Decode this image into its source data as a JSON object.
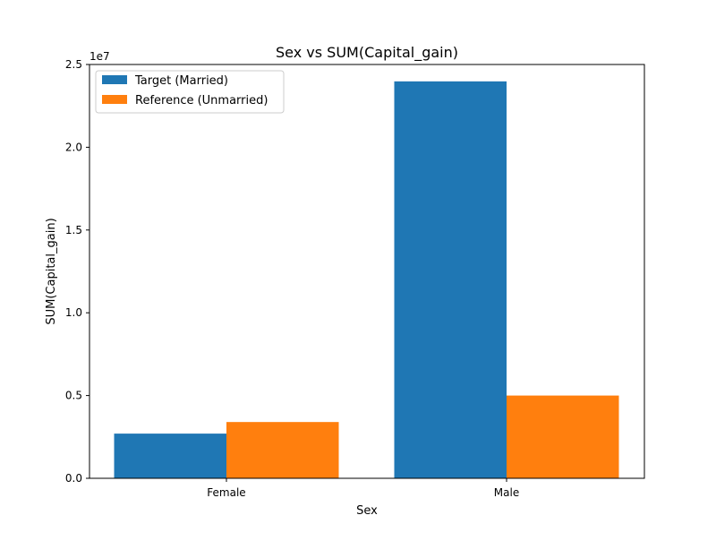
{
  "chart_data": {
    "type": "bar",
    "title": "Sex vs SUM(Capital_gain)",
    "xlabel": "Sex",
    "ylabel": "SUM(Capital_gain)",
    "y_offset_label": "1e7",
    "categories": [
      "Female",
      "Male"
    ],
    "series": [
      {
        "name": "Target (Married)",
        "values": [
          2700000,
          23980000
        ],
        "color": "#1f77b4"
      },
      {
        "name": "Reference (Unmarried)",
        "values": [
          3400000,
          5000000
        ],
        "color": "#ff7f0e"
      }
    ],
    "ylim": [
      0,
      25000000
    ],
    "yticks": [
      0,
      5000000,
      10000000,
      15000000,
      20000000,
      25000000
    ],
    "ytick_labels": [
      "0.0",
      "0.5",
      "1.0",
      "1.5",
      "2.0",
      "2.5"
    ],
    "grid": false,
    "legend_position": "top-left"
  }
}
